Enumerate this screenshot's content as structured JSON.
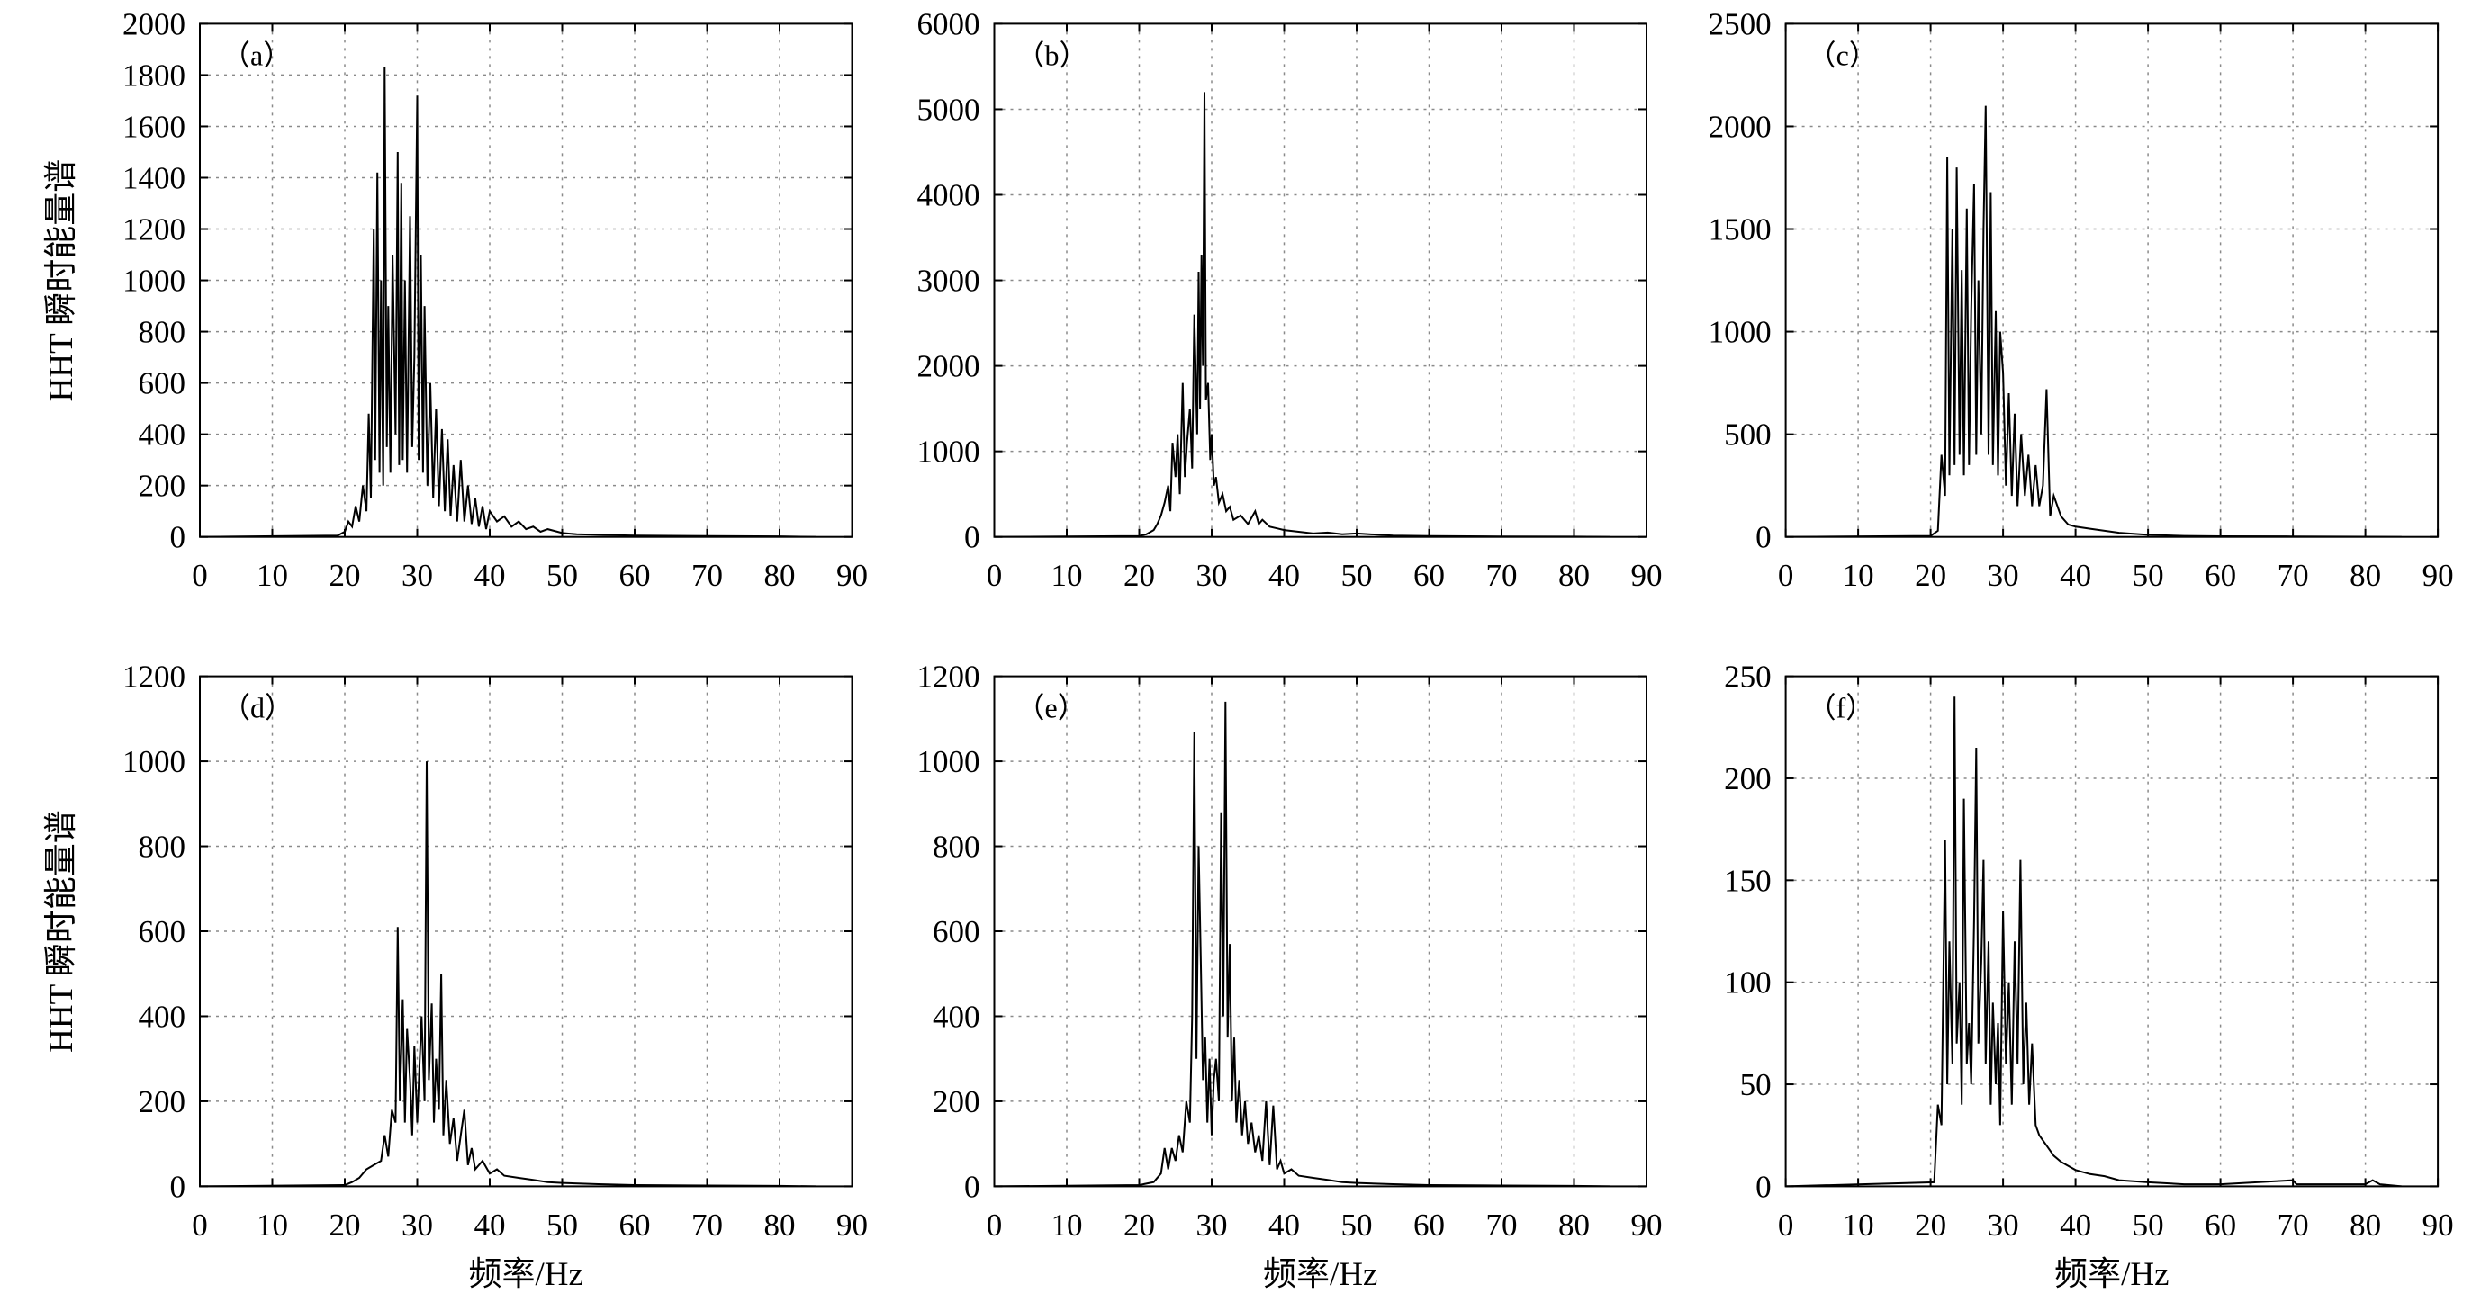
{
  "chart_data": [
    {
      "type": "line",
      "panel_label": "（a）",
      "xlabel": "",
      "ylabel": "HHT 瞬时能量谱",
      "xlim": [
        0,
        90
      ],
      "ylim": [
        0,
        2000
      ],
      "xticks": [
        0,
        10,
        20,
        30,
        40,
        50,
        60,
        70,
        80,
        90
      ],
      "yticks": [
        0,
        200,
        400,
        600,
        800,
        1000,
        1200,
        1400,
        1600,
        1800,
        2000
      ],
      "grid": true,
      "x": [
        0,
        19,
        20,
        20.5,
        21,
        21.5,
        22,
        22.5,
        23,
        23.3,
        23.6,
        24,
        24.2,
        24.5,
        24.8,
        25,
        25.3,
        25.5,
        25.8,
        26,
        26.3,
        26.6,
        27,
        27.3,
        27.5,
        27.8,
        28,
        28.3,
        28.6,
        29,
        29.3,
        29.6,
        30,
        30.2,
        30.5,
        30.8,
        31,
        31.4,
        31.8,
        32.2,
        32.6,
        33,
        33.4,
        33.8,
        34.2,
        34.6,
        35,
        35.5,
        36,
        36.5,
        37,
        37.5,
        38,
        38.5,
        39,
        39.5,
        40,
        41,
        42,
        43,
        44,
        45,
        46,
        47,
        48,
        50,
        52,
        55,
        60,
        70,
        80,
        85
      ],
      "y": [
        0,
        5,
        20,
        60,
        40,
        120,
        60,
        200,
        100,
        480,
        150,
        1200,
        300,
        1420,
        250,
        1000,
        200,
        1830,
        350,
        900,
        250,
        1100,
        400,
        1500,
        280,
        1380,
        300,
        1000,
        250,
        1250,
        350,
        700,
        1720,
        300,
        1100,
        250,
        900,
        200,
        600,
        150,
        500,
        120,
        420,
        100,
        380,
        80,
        280,
        60,
        300,
        60,
        200,
        50,
        150,
        40,
        120,
        30,
        100,
        60,
        80,
        40,
        60,
        30,
        40,
        20,
        30,
        15,
        10,
        8,
        5,
        3,
        2,
        0
      ]
    },
    {
      "type": "line",
      "panel_label": "（b）",
      "xlabel": "",
      "ylabel": "",
      "xlim": [
        0,
        90
      ],
      "ylim": [
        0,
        6000
      ],
      "xticks": [
        0,
        10,
        20,
        30,
        40,
        50,
        60,
        70,
        80,
        90
      ],
      "yticks": [
        0,
        1000,
        2000,
        3000,
        4000,
        5000,
        6000
      ],
      "grid": true,
      "x": [
        0,
        20,
        21,
        22,
        22.5,
        23,
        23.5,
        24,
        24.3,
        24.6,
        25,
        25.3,
        25.6,
        26,
        26.3,
        26.6,
        27,
        27.3,
        27.6,
        28,
        28.2,
        28.4,
        28.6,
        28.8,
        29,
        29.2,
        29.5,
        29.8,
        30,
        30.3,
        30.6,
        31,
        31.5,
        32,
        32.5,
        33,
        34,
        35,
        36,
        36.5,
        37,
        38,
        39,
        40,
        42,
        44,
        46,
        48,
        50,
        55,
        60,
        70,
        80,
        85
      ],
      "y": [
        0,
        10,
        30,
        80,
        150,
        250,
        400,
        600,
        300,
        1100,
        700,
        1200,
        500,
        1800,
        700,
        1100,
        1500,
        800,
        2600,
        1200,
        3100,
        1500,
        3300,
        2000,
        5200,
        1600,
        1800,
        900,
        1200,
        600,
        700,
        400,
        500,
        300,
        350,
        200,
        250,
        150,
        300,
        150,
        200,
        120,
        100,
        80,
        60,
        40,
        50,
        30,
        40,
        15,
        10,
        5,
        3,
        0
      ]
    },
    {
      "type": "line",
      "panel_label": "（c）",
      "xlabel": "",
      "ylabel": "",
      "xlim": [
        0,
        90
      ],
      "ylim": [
        0,
        2500
      ],
      "xticks": [
        0,
        10,
        20,
        30,
        40,
        50,
        60,
        70,
        80,
        90
      ],
      "yticks": [
        0,
        500,
        1000,
        1500,
        2000,
        2500
      ],
      "grid": true,
      "x": [
        0,
        20,
        21,
        21.5,
        22,
        22.3,
        22.6,
        23,
        23.3,
        23.6,
        24,
        24.3,
        24.6,
        25,
        25.3,
        25.6,
        26,
        26.3,
        26.6,
        27,
        27.3,
        27.6,
        28,
        28.3,
        28.6,
        29,
        29.3,
        29.6,
        30,
        30.4,
        30.8,
        31.2,
        31.6,
        32,
        32.5,
        33,
        33.5,
        34,
        34.5,
        35,
        35.5,
        36,
        36.5,
        37,
        38,
        39,
        40,
        42,
        44,
        46,
        50,
        55,
        60,
        70,
        80,
        85
      ],
      "y": [
        0,
        5,
        30,
        400,
        200,
        1850,
        300,
        1500,
        350,
        1800,
        400,
        1300,
        300,
        1600,
        350,
        1100,
        1720,
        400,
        1250,
        500,
        1500,
        2100,
        400,
        1680,
        350,
        1100,
        300,
        1000,
        800,
        250,
        700,
        200,
        600,
        150,
        500,
        200,
        400,
        150,
        350,
        150,
        250,
        720,
        100,
        200,
        100,
        60,
        50,
        40,
        30,
        20,
        10,
        5,
        3,
        2,
        1,
        0
      ]
    },
    {
      "type": "line",
      "panel_label": "（d）",
      "xlabel": "频率/Hz",
      "ylabel": "HHT 瞬时能量谱",
      "xlim": [
        0,
        90
      ],
      "ylim": [
        0,
        1200
      ],
      "xticks": [
        0,
        10,
        20,
        30,
        40,
        50,
        60,
        70,
        80,
        90
      ],
      "yticks": [
        0,
        200,
        400,
        600,
        800,
        1000,
        1200
      ],
      "grid": true,
      "x": [
        0,
        20,
        21,
        22,
        23,
        24,
        25,
        25.5,
        26,
        26.5,
        27,
        27.3,
        27.6,
        28,
        28.3,
        28.6,
        29,
        29.3,
        29.6,
        30,
        30.3,
        30.6,
        31,
        31.3,
        31.6,
        32,
        32.3,
        32.6,
        33,
        33.3,
        33.6,
        34,
        34.5,
        35,
        35.5,
        36,
        36.5,
        37,
        37.5,
        38,
        39,
        40,
        41,
        42,
        44,
        46,
        48,
        50,
        55,
        60,
        70,
        80,
        85
      ],
      "y": [
        0,
        3,
        10,
        20,
        40,
        50,
        60,
        120,
        70,
        180,
        150,
        610,
        200,
        440,
        150,
        370,
        250,
        120,
        330,
        150,
        280,
        400,
        200,
        1000,
        250,
        430,
        150,
        300,
        180,
        500,
        120,
        250,
        100,
        160,
        60,
        120,
        180,
        50,
        90,
        40,
        60,
        30,
        40,
        25,
        20,
        15,
        10,
        8,
        5,
        3,
        2,
        1,
        0
      ]
    },
    {
      "type": "line",
      "panel_label": "（e）",
      "xlabel": "频率/Hz",
      "ylabel": "",
      "xlim": [
        0,
        90
      ],
      "ylim": [
        0,
        1200
      ],
      "xticks": [
        0,
        10,
        20,
        30,
        40,
        50,
        60,
        70,
        80,
        90
      ],
      "yticks": [
        0,
        200,
        400,
        600,
        800,
        1000,
        1200
      ],
      "grid": true,
      "x": [
        0,
        20,
        22,
        23,
        23.5,
        24,
        24.5,
        25,
        25.5,
        26,
        26.5,
        27,
        27.3,
        27.6,
        27.9,
        28.2,
        28.5,
        28.8,
        29.1,
        29.4,
        29.7,
        30,
        30.3,
        30.6,
        31,
        31.3,
        31.6,
        31.9,
        32.2,
        32.5,
        32.8,
        33.1,
        33.4,
        33.8,
        34.2,
        34.6,
        35,
        35.5,
        36,
        36.5,
        37,
        37.5,
        38,
        38.5,
        39,
        39.5,
        40,
        41,
        42,
        44,
        46,
        48,
        50,
        55,
        60,
        70,
        80,
        85
      ],
      "y": [
        0,
        3,
        10,
        30,
        90,
        40,
        90,
        60,
        120,
        80,
        200,
        150,
        400,
        1070,
        300,
        800,
        530,
        250,
        350,
        150,
        300,
        120,
        250,
        300,
        200,
        880,
        400,
        1140,
        350,
        570,
        200,
        350,
        150,
        250,
        120,
        200,
        100,
        150,
        80,
        120,
        60,
        200,
        50,
        190,
        40,
        60,
        30,
        40,
        25,
        20,
        15,
        10,
        8,
        5,
        3,
        2,
        1,
        0
      ]
    },
    {
      "type": "line",
      "panel_label": "（f）",
      "xlabel": "频率/Hz",
      "ylabel": "",
      "xlim": [
        0,
        90
      ],
      "ylim": [
        0,
        250
      ],
      "xticks": [
        0,
        10,
        20,
        30,
        40,
        50,
        60,
        70,
        80,
        90
      ],
      "yticks": [
        0,
        50,
        100,
        150,
        200,
        250
      ],
      "grid": true,
      "x": [
        0,
        20.5,
        21,
        21.5,
        22,
        22.3,
        22.6,
        23,
        23.3,
        23.6,
        24,
        24.3,
        24.6,
        25,
        25.3,
        25.6,
        26,
        26.3,
        26.6,
        27,
        27.3,
        27.6,
        28,
        28.3,
        28.6,
        29,
        29.3,
        29.6,
        30,
        30.4,
        30.8,
        31.2,
        31.6,
        32,
        32.4,
        32.8,
        33.2,
        33.6,
        34,
        34.5,
        35,
        36,
        37,
        38,
        40,
        42,
        44,
        46,
        50,
        55,
        60,
        70,
        70.5,
        80,
        81,
        82,
        85
      ],
      "y": [
        0,
        2,
        40,
        30,
        170,
        50,
        120,
        60,
        240,
        70,
        100,
        40,
        190,
        60,
        80,
        50,
        130,
        215,
        70,
        110,
        160,
        60,
        120,
        40,
        90,
        50,
        80,
        30,
        135,
        60,
        100,
        40,
        120,
        60,
        160,
        50,
        90,
        40,
        70,
        30,
        25,
        20,
        15,
        12,
        8,
        6,
        5,
        3,
        2,
        1,
        1,
        3,
        1,
        1,
        3,
        1,
        0
      ]
    }
  ]
}
